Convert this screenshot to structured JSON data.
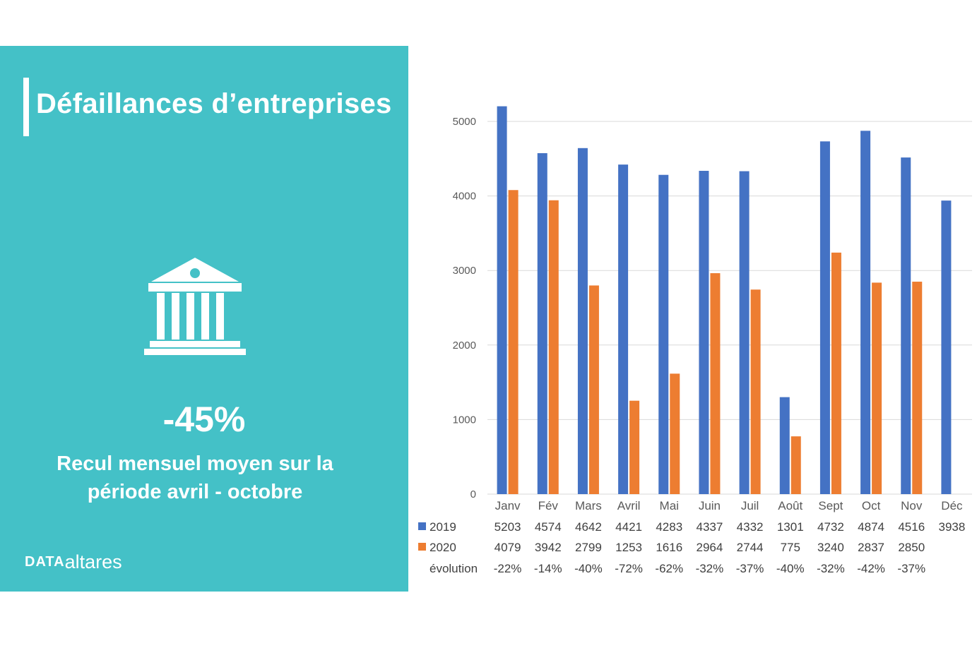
{
  "panel": {
    "title": "Défaillances d’entreprises",
    "icon": "bank-building-icon",
    "stat_value": "-45%",
    "stat_line1": "Recul mensuel moyen sur la",
    "stat_line2": "période avril - octobre",
    "logo_mark": "DATA",
    "logo_text": "altares",
    "colors": {
      "background": "#44c1c7",
      "text": "#ffffff"
    }
  },
  "chart_data": {
    "type": "bar",
    "categories": [
      "Janv",
      "Fév",
      "Mars",
      "Avril",
      "Mai",
      "Juin",
      "Juil",
      "Août",
      "Sept",
      "Oct",
      "Nov",
      "Déc"
    ],
    "series": [
      {
        "name": "2019",
        "color": "#4472c4",
        "values": [
          5203,
          4574,
          4642,
          4421,
          4283,
          4337,
          4332,
          1301,
          4732,
          4874,
          4516,
          3938
        ]
      },
      {
        "name": "2020",
        "color": "#ed7d31",
        "values": [
          4079,
          3942,
          2799,
          1253,
          1616,
          2964,
          2744,
          775,
          3240,
          2837,
          2850,
          null
        ]
      }
    ],
    "ylim": [
      0,
      5000
    ],
    "yticks": [
      0,
      1000,
      2000,
      3000,
      4000,
      5000
    ],
    "grid": true,
    "table_rows": [
      {
        "label": "2019",
        "legend_color": "#4472c4",
        "cells": [
          "5203",
          "4574",
          "4642",
          "4421",
          "4283",
          "4337",
          "4332",
          "1301",
          "4732",
          "4874",
          "4516",
          "3938"
        ]
      },
      {
        "label": "2020",
        "legend_color": "#ed7d31",
        "cells": [
          "4079",
          "3942",
          "2799",
          "1253",
          "1616",
          "2964",
          "2744",
          "775",
          "3240",
          "2837",
          "2850",
          ""
        ]
      },
      {
        "label": "évolution",
        "legend_color": "",
        "cells": [
          "-22%",
          "-14%",
          "-40%",
          "-72%",
          "-62%",
          "-32%",
          "-37%",
          "-40%",
          "-32%",
          "-42%",
          "-37%",
          ""
        ]
      }
    ]
  }
}
